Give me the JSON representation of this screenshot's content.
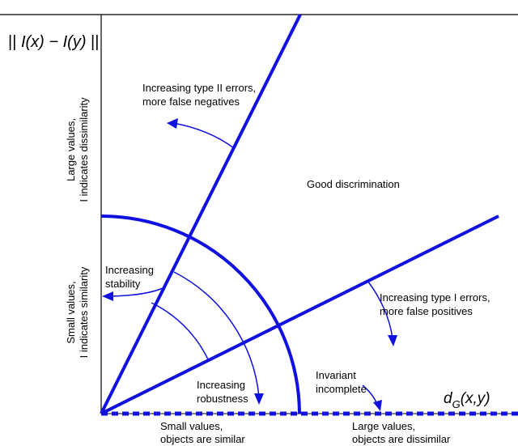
{
  "axes": {
    "y_title_prefix": "|| ",
    "y_title_italic": "I(x) − I(y)",
    "y_title_suffix": " ||",
    "x_title_main": "d",
    "x_title_sub": "G",
    "x_title_args": "(x,y)"
  },
  "y_labels": {
    "upper": [
      "Large values,",
      "I indicates dissimilarity"
    ],
    "lower": [
      "Small values,",
      "I indicates similarity"
    ]
  },
  "x_labels": {
    "left": [
      "Small values,",
      "objects are similar"
    ],
    "right": [
      "Large values,",
      "objects are dissimilar"
    ]
  },
  "annotations": {
    "type2": [
      "Increasing type II errors,",
      "more false negatives"
    ],
    "good": "Good discrimination",
    "stability": [
      "Increasing",
      "stability"
    ],
    "type1": [
      "Increasing type I errors,",
      "more false positives"
    ],
    "robustness": [
      "Increasing",
      "robustness"
    ],
    "invariant": [
      "Invariant",
      "incomplete"
    ]
  },
  "colors": {
    "line": "#1010e0",
    "frame": "#000000",
    "text": "#000000"
  }
}
